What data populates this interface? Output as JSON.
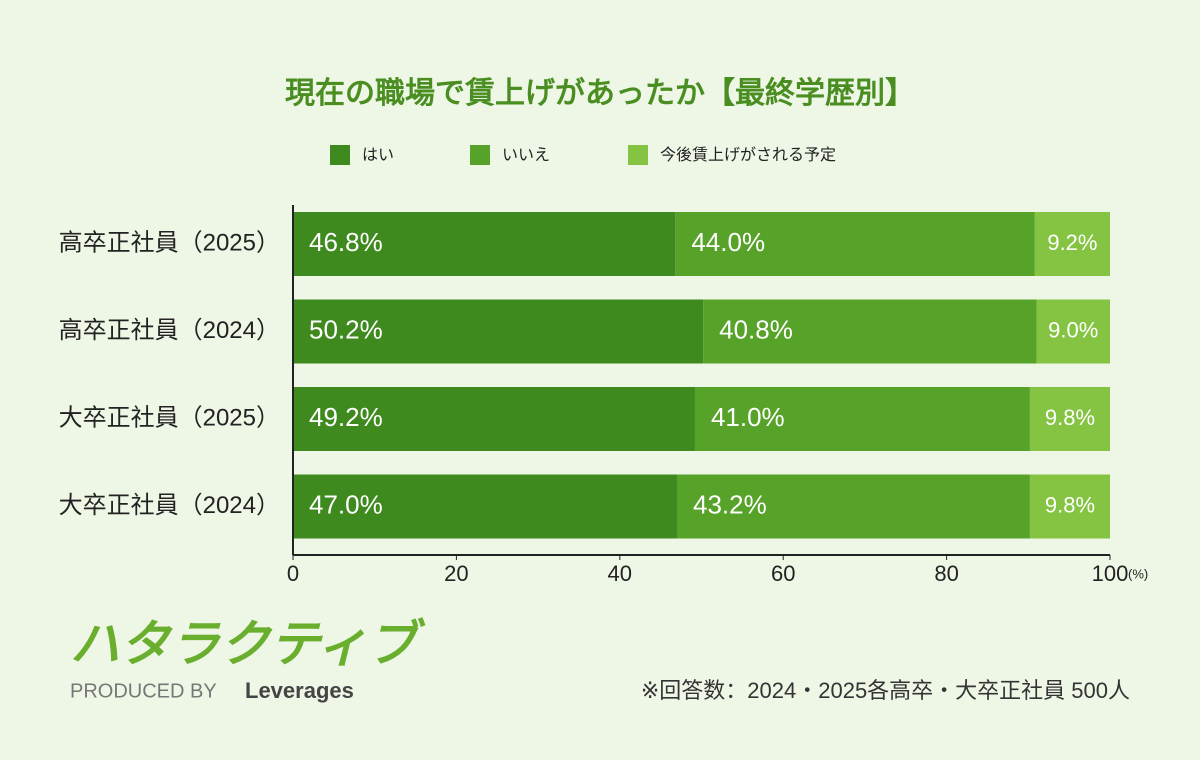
{
  "chart_data": {
    "type": "stacked-bar-horizontal",
    "title": "現在の職場で賃上げがあったか【最終学歴別】",
    "categories": [
      "高卒正社員（2025）",
      "高卒正社員（2024）",
      "大卒正社員（2025）",
      "大卒正社員（2024）"
    ],
    "series": [
      {
        "name": "はい",
        "color": "#3f8a1e",
        "values": [
          46.8,
          50.2,
          49.2,
          47.0
        ],
        "value_labels": [
          "46.8%",
          "50.2%",
          "49.2%",
          "47.0%"
        ]
      },
      {
        "name": "いいえ",
        "color": "#57a229",
        "values": [
          44.0,
          40.8,
          41.0,
          43.2
        ],
        "value_labels": [
          "44.0%",
          "40.8%",
          "41.0%",
          "43.2%"
        ]
      },
      {
        "name": "今後賃上げがされる予定",
        "color": "#85c442",
        "values": [
          9.2,
          9.0,
          9.8,
          9.8
        ],
        "value_labels": [
          "9.2%",
          "9.0%",
          "9.8%",
          "9.8%"
        ]
      }
    ],
    "xlim": [
      0,
      100
    ],
    "xticks": [
      0,
      20,
      40,
      60,
      80,
      100
    ],
    "x_label": "(%)",
    "legend": "top",
    "note": "※回答数：2024・2025各高卒・大卒正社員 500人"
  },
  "logo": {
    "text": "ハタラクティブ",
    "caption": "PRODUCED BY",
    "brand": "Leverages"
  }
}
